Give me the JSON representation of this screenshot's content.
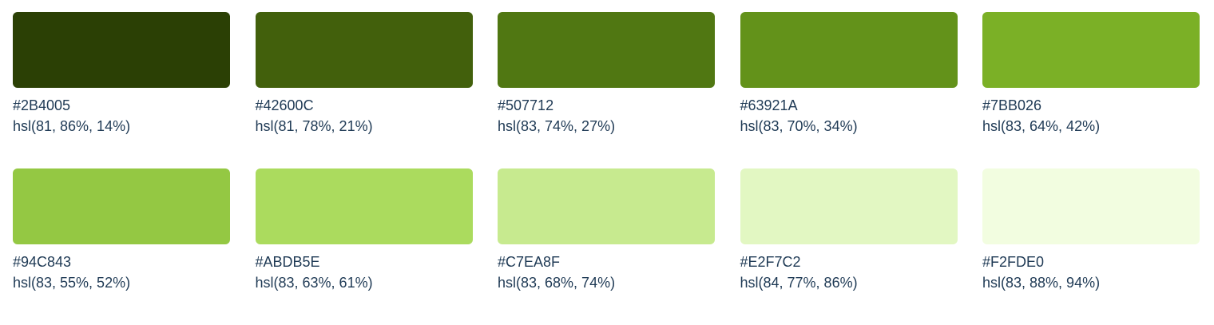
{
  "palette": {
    "swatches": [
      {
        "hex": "#2B4005",
        "hsl": "hsl(81, 86%, 14%)",
        "color": "#2B4005"
      },
      {
        "hex": "#42600C",
        "hsl": "hsl(81, 78%, 21%)",
        "color": "#42600C"
      },
      {
        "hex": "#507712",
        "hsl": "hsl(83, 74%, 27%)",
        "color": "#507712"
      },
      {
        "hex": "#63921A",
        "hsl": "hsl(83, 70%, 34%)",
        "color": "#63921A"
      },
      {
        "hex": "#7BB026",
        "hsl": "hsl(83, 64%, 42%)",
        "color": "#7BB026"
      },
      {
        "hex": "#94C843",
        "hsl": "hsl(83, 55%, 52%)",
        "color": "#94C843"
      },
      {
        "hex": "#ABDB5E",
        "hsl": "hsl(83, 63%, 61%)",
        "color": "#ABDB5E"
      },
      {
        "hex": "#C7EA8F",
        "hsl": "hsl(83, 68%, 74%)",
        "color": "#C7EA8F"
      },
      {
        "hex": "#E2F7C2",
        "hsl": "hsl(84, 77%, 86%)",
        "color": "#E2F7C2"
      },
      {
        "hex": "#F2FDE0",
        "hsl": "hsl(83, 88%, 94%)",
        "color": "#F2FDE0"
      }
    ]
  }
}
